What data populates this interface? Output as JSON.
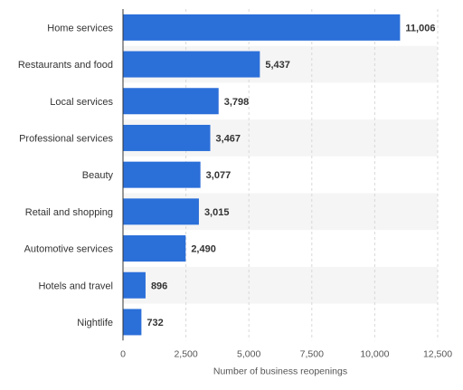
{
  "chart_data": {
    "type": "bar",
    "orientation": "horizontal",
    "categories": [
      "Home services",
      "Restaurants and food",
      "Local services",
      "Professional services",
      "Beauty",
      "Retail and shopping",
      "Automotive services",
      "Hotels and travel",
      "Nightlife"
    ],
    "values": [
      11006,
      5437,
      3798,
      3467,
      3077,
      3015,
      2490,
      896,
      732
    ],
    "value_labels": [
      "11,006",
      "5,437",
      "3,798",
      "3,467",
      "3,077",
      "3,015",
      "2,490",
      "896",
      "732"
    ],
    "xlabel": "Number of business reopenings",
    "ylabel": "",
    "title": "",
    "xlim": [
      0,
      12500
    ],
    "xticks": [
      0,
      2500,
      5000,
      7500,
      10000,
      12500
    ],
    "xtick_labels": [
      "0",
      "2,500",
      "5,000",
      "7,500",
      "10,000",
      "12,500"
    ],
    "grid": "vertical dashed",
    "alternating_row_bands": true,
    "colors": {
      "bar": "#2B6FD9",
      "band": "#F5F5F5",
      "grid": "#D8D8D8",
      "axis": "#333333",
      "label": "#333333",
      "tick": "#555555"
    }
  }
}
